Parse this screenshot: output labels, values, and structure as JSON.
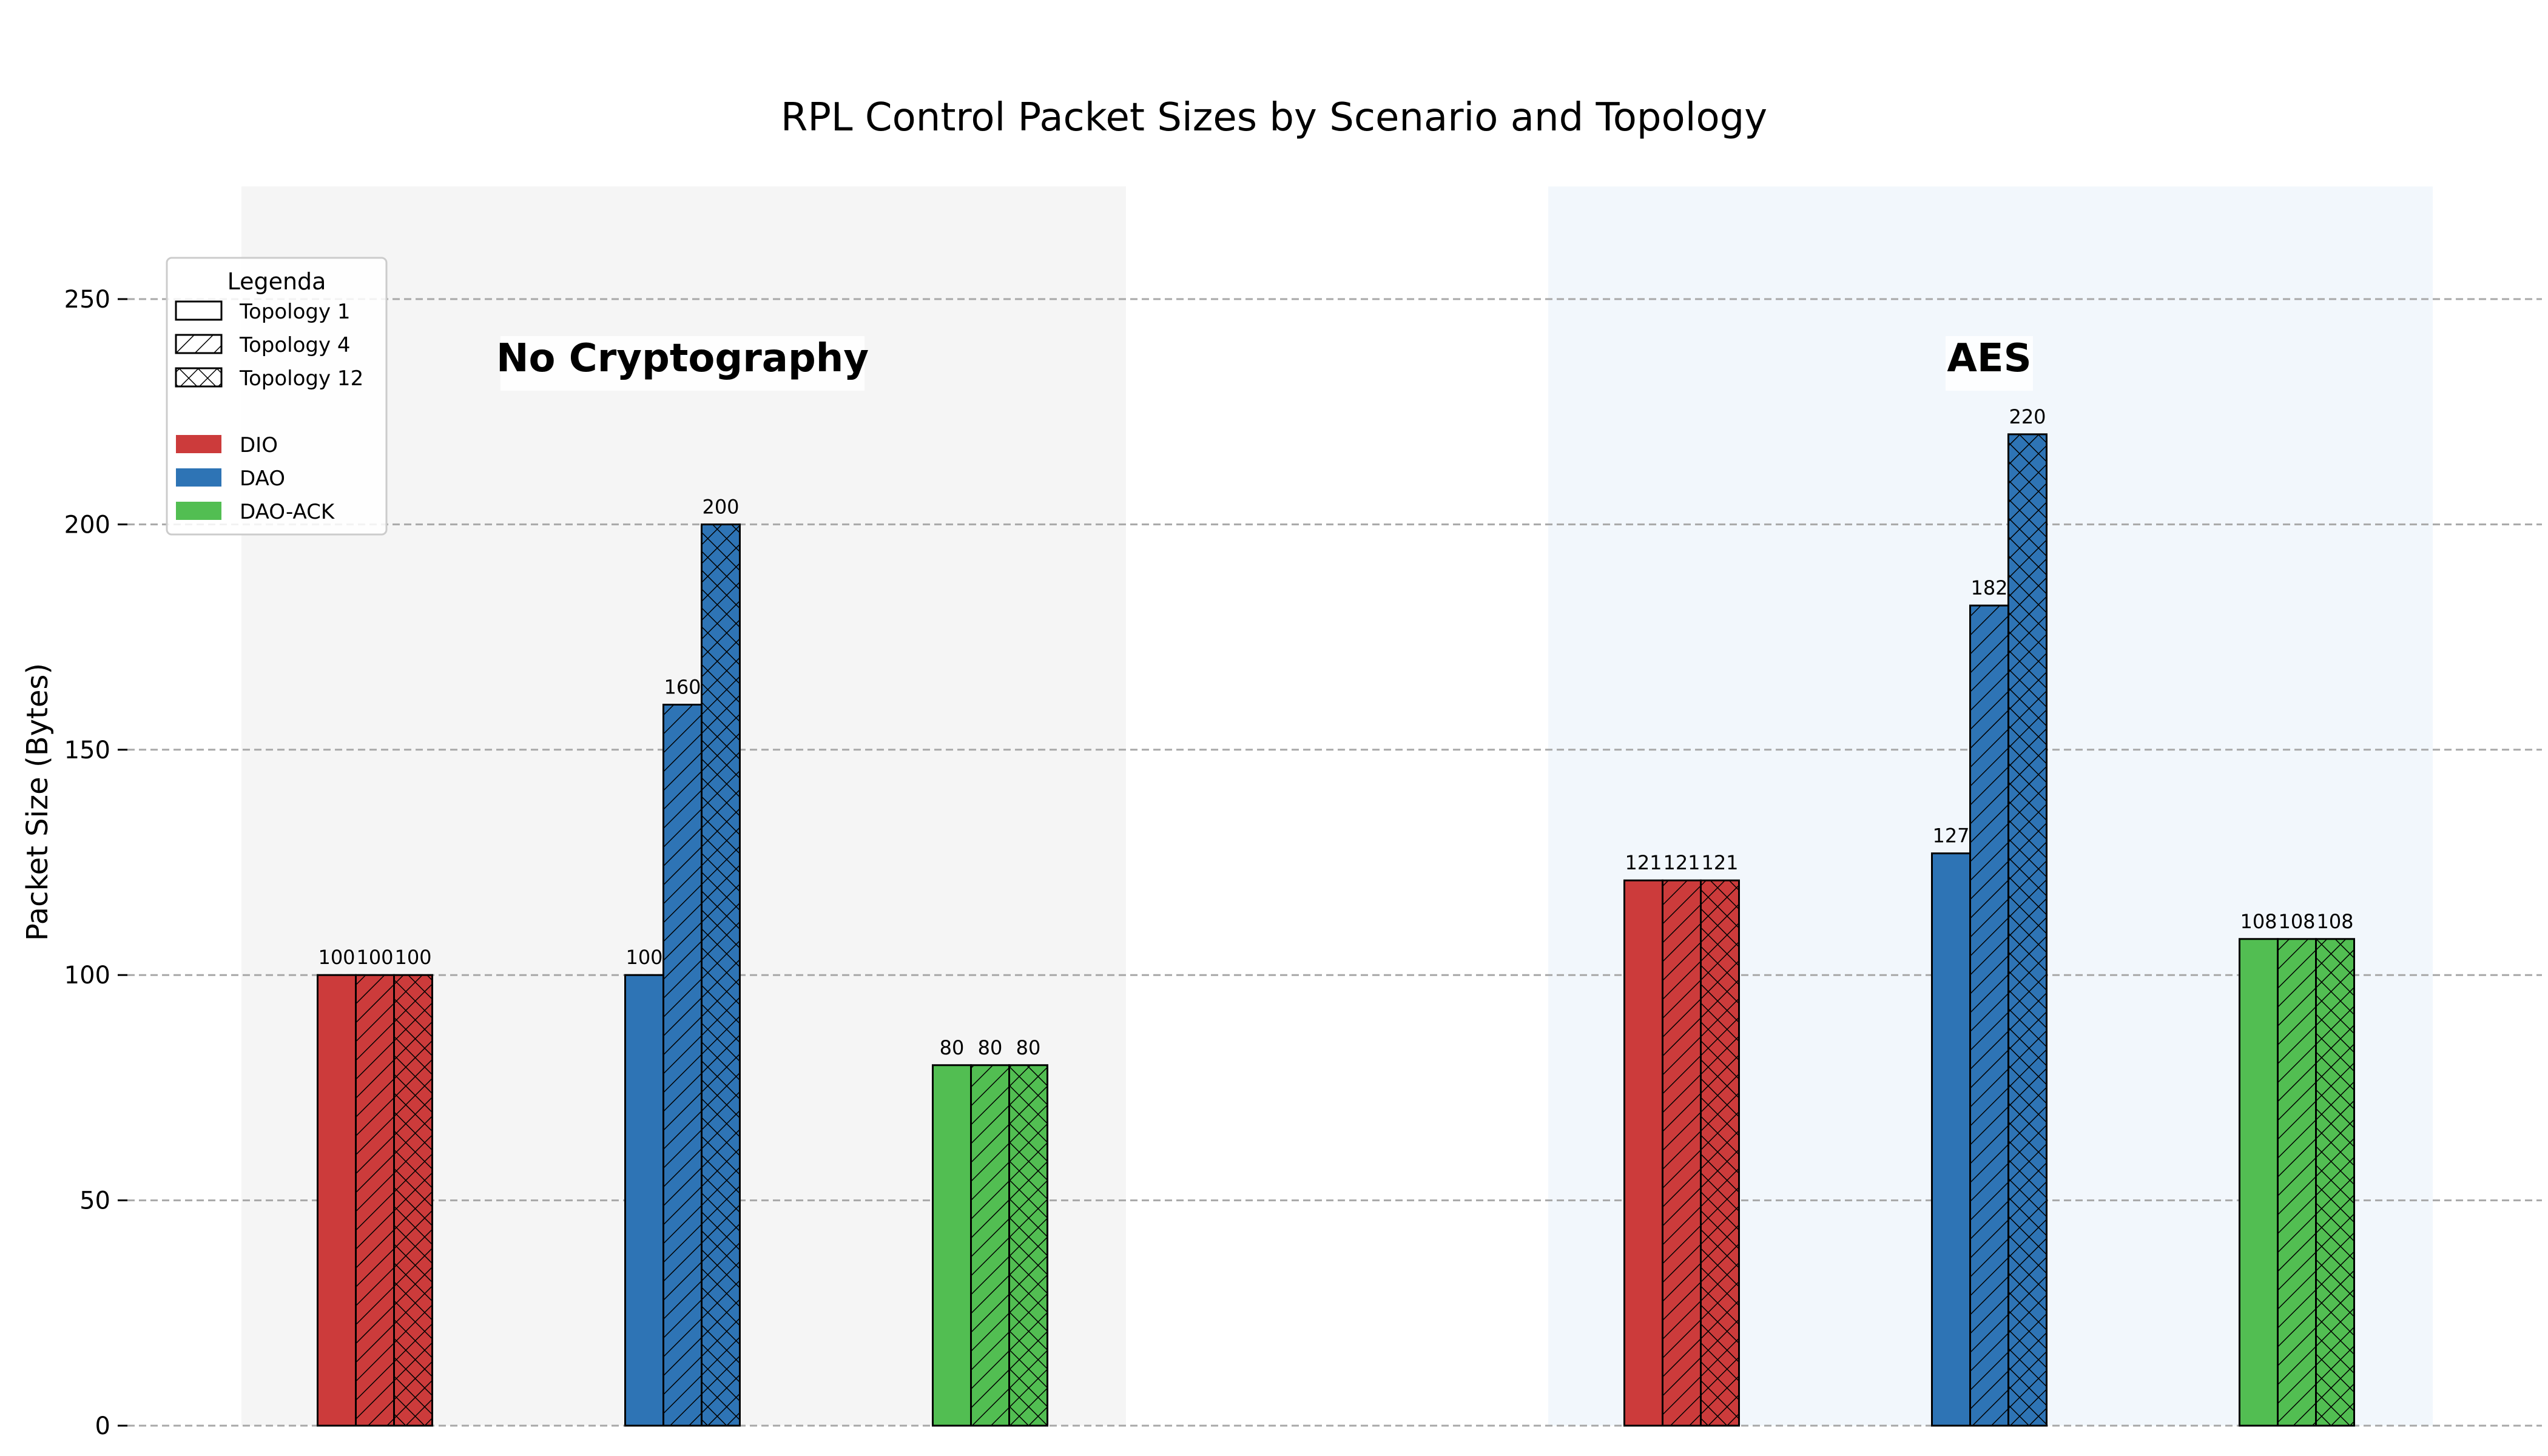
{
  "chart_data": {
    "type": "bar",
    "title": "RPL Control Packet Sizes by Scenario and Topology",
    "xlabel": "",
    "ylabel": "Packet Size (Bytes)",
    "ylim": [
      0,
      275
    ],
    "yticks": [
      0,
      50,
      100,
      150,
      200,
      250
    ],
    "grid": true,
    "legend": {
      "title": "Legenda",
      "placement": "top-left",
      "topologies": [
        "Topology 1",
        "Topology 4",
        "Topology 12"
      ],
      "packet_types": [
        "DIO",
        "DAO",
        "DAO-ACK"
      ]
    },
    "colors": {
      "DIO": "#cc3b3b",
      "DAO": "#2e74b5",
      "DAO-ACK": "#52be52",
      "no_crypto_bg": "#f5f5f5",
      "aes_bg": "#f2f7fc",
      "grid": "#a8a8a8"
    },
    "groups": [
      {
        "name": "No Cryptography",
        "series": [
          {
            "name": "DIO",
            "values": [
              100,
              100,
              100
            ]
          },
          {
            "name": "DAO",
            "values": [
              100,
              160,
              200
            ]
          },
          {
            "name": "DAO-ACK",
            "values": [
              80,
              80,
              80
            ]
          }
        ]
      },
      {
        "name": "AES",
        "series": [
          {
            "name": "DIO",
            "values": [
              121,
              121,
              121
            ]
          },
          {
            "name": "DAO",
            "values": [
              127,
              182,
              220
            ]
          },
          {
            "name": "DAO-ACK",
            "values": [
              108,
              108,
              108
            ]
          }
        ]
      }
    ]
  }
}
